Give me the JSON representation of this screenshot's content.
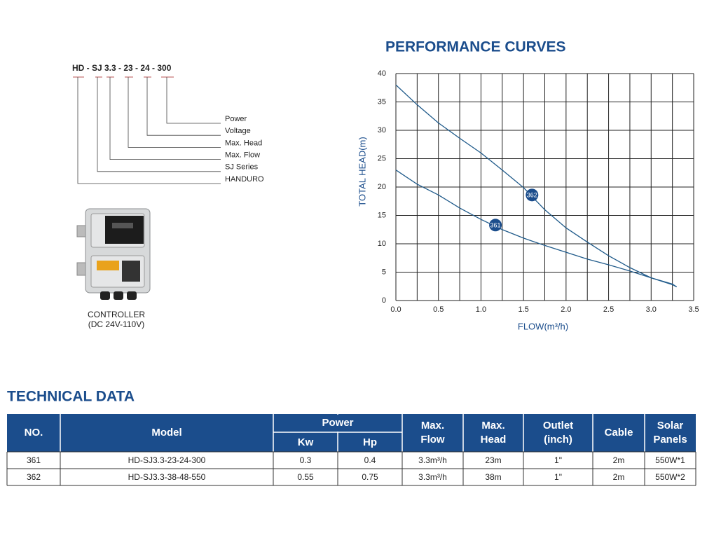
{
  "chart_data": {
    "type": "line",
    "title": "PERFORMANCE CURVES",
    "x_label": "FLOW(m³/h)",
    "y_label": "TOTAL HEAD(m)",
    "x": [
      0,
      0.25,
      0.5,
      0.75,
      1,
      1.25,
      1.5,
      1.75,
      2,
      2.25,
      2.5,
      2.75,
      3,
      3.25,
      3.3
    ],
    "series": [
      {
        "name": "361",
        "color": "#1f5a8a",
        "values": [
          23,
          20.5,
          18.6,
          16.3,
          14.3,
          12.5,
          11,
          9.7,
          8.5,
          7.3,
          6.3,
          5.2,
          4,
          2.8,
          2.4
        ],
        "marker_x": 1.17,
        "marker_y": 13.3
      },
      {
        "name": "362",
        "color": "#1f5a8a",
        "values": [
          38,
          34.5,
          31.3,
          28.6,
          26,
          23,
          19.9,
          16,
          12.8,
          10.3,
          7.9,
          5.8,
          4,
          2.9,
          2.4
        ],
        "marker_x": 1.6,
        "marker_y": 18.6
      }
    ],
    "xlim": [
      0,
      3.5
    ],
    "ylim": [
      0,
      40
    ],
    "xticks": [
      {
        "value": 0,
        "label": "0.0"
      },
      0.5,
      {
        "value": 1,
        "label": "1.0"
      },
      1.5,
      {
        "value": 2,
        "label": "2.0"
      },
      2.5,
      {
        "value": 3,
        "label": "3.0"
      },
      3.5
    ],
    "xminor_ticks": [
      0.25,
      0.75,
      1.25,
      1.75,
      2.25,
      2.75,
      3.25
    ],
    "yticks": [
      0,
      5,
      10,
      15,
      20,
      25,
      30,
      35,
      40
    ],
    "grid": true
  },
  "model_code": {
    "code": "HD - SJ 3.3 - 23 - 24 - 300",
    "parts": [
      "Power",
      "Voltage",
      "Max. Head",
      "Max. Flow",
      "SJ Series",
      "HANDURO"
    ]
  },
  "controller": {
    "caption": [
      "CONTROLLER",
      "(DC 24V-110V)"
    ]
  },
  "technical_data": {
    "title": "TECHNICAL DATA",
    "headers": {
      "no": "NO.",
      "model": "Model",
      "power": "Power",
      "kw": "Kw",
      "hp": "Hp",
      "max_flow": [
        "Max.",
        "Flow"
      ],
      "max_head": [
        "Max.",
        "Head"
      ],
      "outlet": [
        "Outlet",
        "(inch)"
      ],
      "cable": "Cable",
      "solar": [
        "Solar",
        "Panels"
      ]
    },
    "rows": [
      [
        "361",
        "HD-SJ3.3-23-24-300",
        "0.3",
        "0.4",
        "3.3m³/h",
        "23m",
        "1\"",
        "2m",
        "550W*1"
      ],
      [
        "362",
        "HD-SJ3.3-38-48-550",
        "0.55",
        "0.75",
        "3.3m³/h",
        "38m",
        "1\"",
        "2m",
        "550W*2"
      ]
    ]
  }
}
